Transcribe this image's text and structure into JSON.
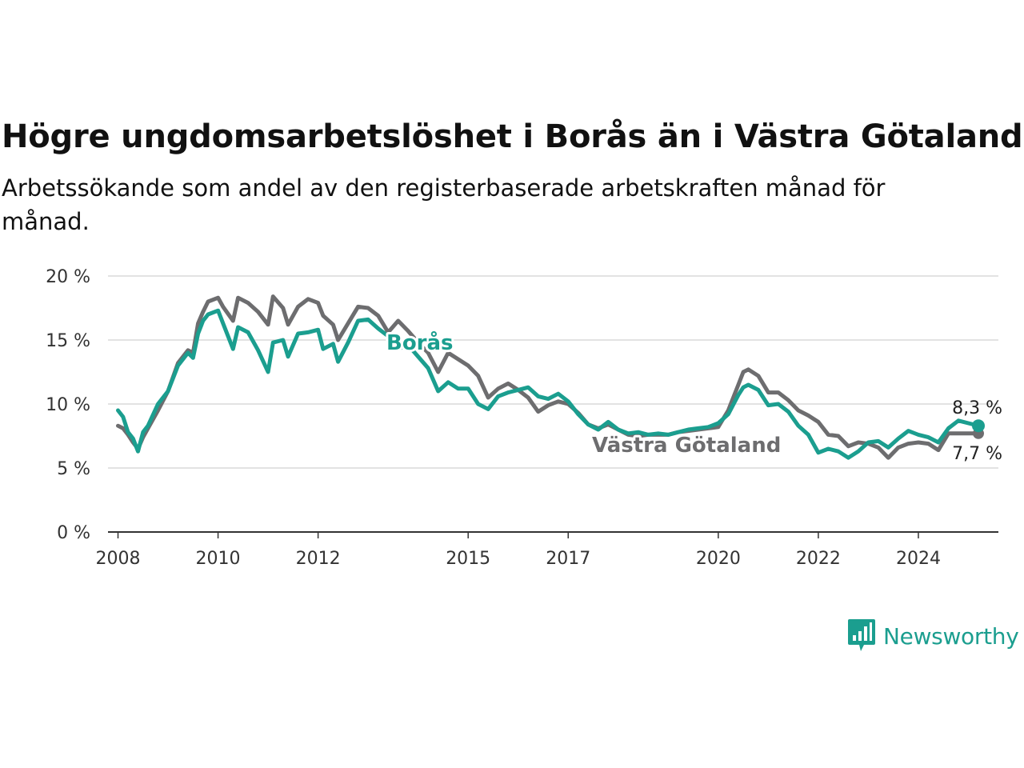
{
  "title": "Högre ungdomsarbetslöshet i Borås än i Västra Götaland",
  "subtitle": "Arbetssökande som andel av den registerbaserade arbetskraften månad för månad.",
  "brand": {
    "name": "Newsworthy",
    "color": "#1b9e8f"
  },
  "chart_data": {
    "type": "line",
    "title": "Högre ungdomsarbetslöshet i Borås än i Västra Götaland",
    "subtitle": "Arbetssökande som andel av den registerbaserade arbetskraften månad för månad.",
    "xlabel": "",
    "ylabel": "",
    "x_range": [
      2007.8,
      2025.6
    ],
    "ylim": [
      0,
      20
    ],
    "y_ticks": [
      0,
      5,
      10,
      15,
      20
    ],
    "y_tick_labels": [
      "0 %",
      "5 %",
      "10 %",
      "15 %",
      "20 %"
    ],
    "x_ticks": [
      2008,
      2010,
      2012,
      2015,
      2017,
      2020,
      2022,
      2024
    ],
    "x_tick_labels": [
      "2008",
      "2010",
      "2012",
      "2015",
      "2017",
      "2020",
      "2022",
      "2024"
    ],
    "grid": true,
    "series": [
      {
        "name": "Västra Götaland",
        "color": "#6d6d6f",
        "end_label": "7,7 %",
        "x": [
          2008.0,
          2008.1,
          2008.2,
          2008.3,
          2008.4,
          2008.5,
          2008.6,
          2008.8,
          2009.0,
          2009.2,
          2009.4,
          2009.5,
          2009.6,
          2009.7,
          2009.8,
          2010.0,
          2010.1,
          2010.3,
          2010.4,
          2010.6,
          2010.8,
          2011.0,
          2011.1,
          2011.3,
          2011.4,
          2011.6,
          2011.8,
          2012.0,
          2012.1,
          2012.3,
          2012.4,
          2012.6,
          2012.8,
          2013.0,
          2013.2,
          2013.4,
          2013.6,
          2013.8,
          2014.0,
          2014.2,
          2014.4,
          2014.6,
          2014.8,
          2015.0,
          2015.2,
          2015.4,
          2015.6,
          2015.8,
          2016.0,
          2016.2,
          2016.4,
          2016.6,
          2016.8,
          2017.0,
          2017.2,
          2017.4,
          2017.6,
          2017.8,
          2018.0,
          2018.2,
          2018.4,
          2018.6,
          2018.8,
          2019.0,
          2019.2,
          2019.4,
          2019.6,
          2019.8,
          2020.0,
          2020.2,
          2020.4,
          2020.5,
          2020.6,
          2020.8,
          2021.0,
          2021.2,
          2021.4,
          2021.6,
          2021.8,
          2022.0,
          2022.2,
          2022.4,
          2022.6,
          2022.8,
          2023.0,
          2023.2,
          2023.4,
          2023.6,
          2023.8,
          2024.0,
          2024.2,
          2024.4,
          2024.6,
          2024.8,
          2025.0,
          2025.2
        ],
        "values": [
          8.3,
          8.1,
          7.6,
          7.0,
          6.5,
          7.4,
          8.1,
          9.5,
          11.0,
          13.2,
          14.2,
          14.0,
          16.3,
          17.2,
          18.0,
          18.3,
          17.6,
          16.5,
          18.3,
          17.9,
          17.2,
          16.2,
          18.4,
          17.5,
          16.2,
          17.6,
          18.2,
          17.9,
          16.9,
          16.2,
          15.0,
          16.3,
          17.6,
          17.5,
          16.9,
          15.6,
          16.5,
          15.7,
          14.8,
          14.0,
          12.5,
          14.0,
          13.5,
          13.0,
          12.2,
          10.5,
          11.2,
          11.6,
          11.1,
          10.5,
          9.4,
          9.9,
          10.2,
          10.0,
          9.3,
          8.4,
          8.1,
          8.4,
          8.0,
          7.6,
          7.5,
          7.6,
          7.6,
          7.6,
          7.8,
          7.9,
          8.0,
          8.1,
          8.2,
          9.5,
          11.5,
          12.5,
          12.7,
          12.2,
          10.9,
          10.9,
          10.3,
          9.5,
          9.1,
          8.6,
          7.6,
          7.5,
          6.7,
          7.0,
          6.9,
          6.6,
          5.8,
          6.6,
          6.9,
          7.0,
          6.9,
          6.4,
          7.7,
          7.7,
          7.7,
          7.7
        ]
      },
      {
        "name": "Borås",
        "color": "#1b9e8f",
        "end_label": "8,3 %",
        "x": [
          2008.0,
          2008.1,
          2008.2,
          2008.3,
          2008.4,
          2008.5,
          2008.6,
          2008.8,
          2009.0,
          2009.2,
          2009.4,
          2009.5,
          2009.6,
          2009.7,
          2009.8,
          2010.0,
          2010.1,
          2010.3,
          2010.4,
          2010.6,
          2010.8,
          2011.0,
          2011.1,
          2011.3,
          2011.4,
          2011.6,
          2011.8,
          2012.0,
          2012.1,
          2012.3,
          2012.4,
          2012.6,
          2012.8,
          2013.0,
          2013.2,
          2013.4,
          2013.6,
          2013.8,
          2014.0,
          2014.2,
          2014.4,
          2014.6,
          2014.8,
          2015.0,
          2015.2,
          2015.4,
          2015.6,
          2015.8,
          2016.0,
          2016.2,
          2016.4,
          2016.6,
          2016.8,
          2017.0,
          2017.2,
          2017.4,
          2017.6,
          2017.8,
          2018.0,
          2018.2,
          2018.4,
          2018.6,
          2018.8,
          2019.0,
          2019.2,
          2019.4,
          2019.6,
          2019.8,
          2020.0,
          2020.2,
          2020.4,
          2020.5,
          2020.6,
          2020.8,
          2021.0,
          2021.2,
          2021.4,
          2021.6,
          2021.8,
          2022.0,
          2022.2,
          2022.4,
          2022.6,
          2022.8,
          2023.0,
          2023.2,
          2023.4,
          2023.6,
          2023.8,
          2024.0,
          2024.2,
          2024.4,
          2024.6,
          2024.8,
          2025.0,
          2025.2
        ],
        "values": [
          9.5,
          9.0,
          7.8,
          7.3,
          6.3,
          7.8,
          8.3,
          10.0,
          11.0,
          13.0,
          14.0,
          13.6,
          15.5,
          16.5,
          17.0,
          17.3,
          16.3,
          14.3,
          16.0,
          15.6,
          14.2,
          12.5,
          14.8,
          15.0,
          13.7,
          15.5,
          15.6,
          15.8,
          14.3,
          14.7,
          13.3,
          14.8,
          16.5,
          16.6,
          15.9,
          15.3,
          14.3,
          14.6,
          13.7,
          12.8,
          11.0,
          11.7,
          11.2,
          11.2,
          10.0,
          9.6,
          10.6,
          10.9,
          11.1,
          11.3,
          10.6,
          10.4,
          10.8,
          10.2,
          9.2,
          8.4,
          8.0,
          8.6,
          8.0,
          7.7,
          7.8,
          7.6,
          7.7,
          7.6,
          7.8,
          8.0,
          8.1,
          8.2,
          8.5,
          9.2,
          10.7,
          11.3,
          11.5,
          11.1,
          9.9,
          10.0,
          9.4,
          8.3,
          7.6,
          6.2,
          6.5,
          6.3,
          5.8,
          6.3,
          7.0,
          7.1,
          6.6,
          7.3,
          7.9,
          7.6,
          7.4,
          7.0,
          8.1,
          8.7,
          8.5,
          8.3
        ]
      }
    ],
    "annotations": [
      "Borås",
      "Västra Götaland",
      "8,3 %",
      "7,7 %"
    ]
  }
}
